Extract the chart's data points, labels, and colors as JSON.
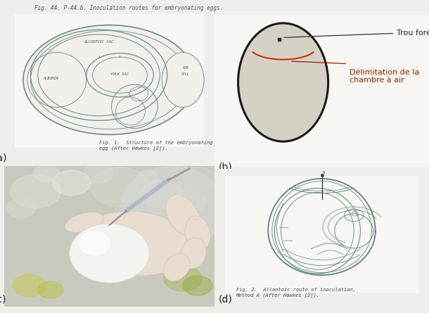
{
  "background_color": "#f0eeea",
  "panel_labels": [
    "(a)",
    "(b)",
    "(c)",
    "(d)"
  ],
  "panel_label_fontsize": 10,
  "egg_fill_color": "#d5d2c5",
  "egg_edge_color": "#1a1a1a",
  "egg_linewidth": 2.0,
  "air_chamber_color": "#cc3300",
  "air_chamber_linewidth": 1.5,
  "annotation_color": "#1a1a1a",
  "annotation_fontsize": 8,
  "trou_fore_label": "Trou foré",
  "delimitation_label": "Délimitation de la\nchambre à air",
  "fig2_caption": "Fig. 2.  Allantoic route of inoculation,\nMethod A (After Hawkes [2]).",
  "fig1_caption": "Fig. 1.  Structure of the embryonating\negg (After Hawkes [2]).",
  "header_text": "Fig. 44. P-44.b. Inoculation routes for embryonating eggs.",
  "diagram_color": "#6a8a8a",
  "diagram_lw": 0.9
}
